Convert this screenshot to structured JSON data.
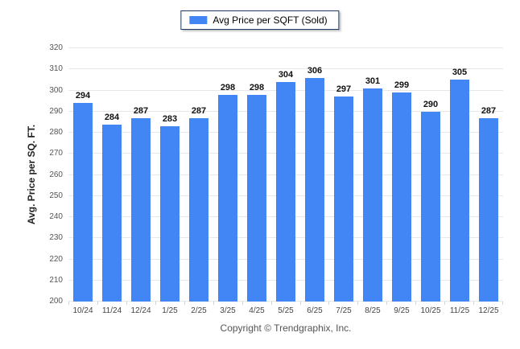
{
  "legend": {
    "label": "Avg Price per SQFT (Sold)",
    "swatch_color": "#4285F4"
  },
  "y_axis": {
    "title": "Avg. Price per SQ. FT.",
    "tick_labels": [
      "200",
      "210",
      "220",
      "230",
      "240",
      "250",
      "260",
      "270",
      "280",
      "290",
      "300",
      "310",
      "320"
    ]
  },
  "footer": {
    "copyright": "Copyright © Trendgraphix, Inc."
  },
  "chart_data": {
    "type": "bar",
    "title": "",
    "series_name": "Avg Price per SQFT (Sold)",
    "categories": [
      "10/24",
      "11/24",
      "12/24",
      "1/25",
      "2/25",
      "3/25",
      "4/25",
      "5/25",
      "6/25",
      "7/25",
      "8/25",
      "9/25",
      "10/25",
      "11/25",
      "12/25"
    ],
    "values": [
      294,
      284,
      287,
      283,
      287,
      298,
      298,
      304,
      306,
      297,
      301,
      299,
      290,
      305,
      287
    ],
    "xlabel": "",
    "ylabel": "Avg. Price per SQ. FT.",
    "ylim": [
      200,
      320
    ],
    "y_step": 10,
    "grid": true,
    "bar_color": "#4285F4",
    "legend_position": "top-center",
    "value_labels_shown": true
  }
}
